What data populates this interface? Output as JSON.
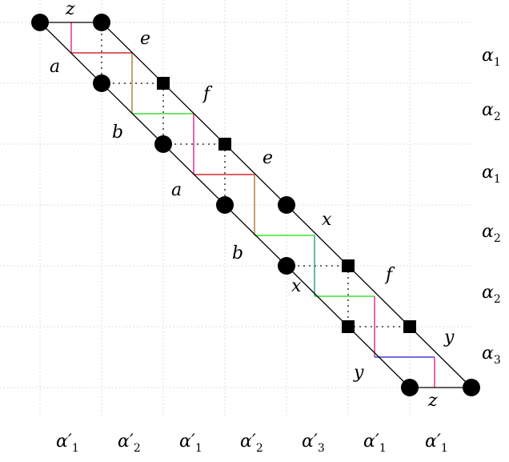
{
  "edge_labels": [
    "z",
    "e",
    "a",
    "f",
    "b",
    "e",
    "a",
    "x",
    "b",
    "f",
    "x",
    "y",
    "y",
    "z"
  ],
  "row_labels": [
    {
      "sym": "α",
      "sub": "1"
    },
    {
      "sym": "α",
      "sub": "2"
    },
    {
      "sym": "α",
      "sub": "1"
    },
    {
      "sym": "α",
      "sub": "2"
    },
    {
      "sym": "α",
      "sub": "2"
    },
    {
      "sym": "α",
      "sub": "3"
    }
  ],
  "column_labels": [
    {
      "sym": "α′",
      "sub": "1"
    },
    {
      "sym": "α′",
      "sub": "2"
    },
    {
      "sym": "α′",
      "sub": "1"
    },
    {
      "sym": "α′",
      "sub": "2"
    },
    {
      "sym": "α′",
      "sub": "3"
    },
    {
      "sym": "α′",
      "sub": "1"
    },
    {
      "sym": "α′",
      "sub": "1"
    }
  ],
  "colors": {
    "magenta": "#e0208f",
    "red": "#d42a2a",
    "brown": "#b07840",
    "green": "#38e038",
    "teal": "#20a080",
    "blue": "#4040d0",
    "grid": "#c8c8c8",
    "dotted": "#777777"
  }
}
